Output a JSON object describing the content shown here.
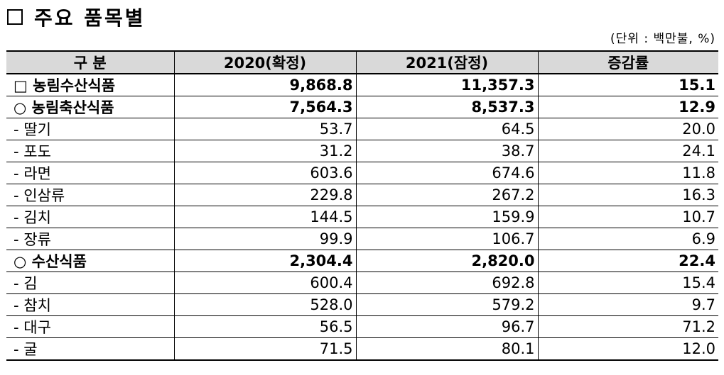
{
  "title": "주요 품목별",
  "unit": "(단위 : 백만불, %)",
  "table": {
    "headers": [
      "구  분",
      "2020(확정)",
      "2021(잠정)",
      "증감률"
    ],
    "rows": [
      {
        "label": "□ 농림수산식품",
        "v2020": "9,868.8",
        "v2021": "11,357.3",
        "rate": "15.1",
        "bold": true
      },
      {
        "label": "○ 농림축산식품",
        "v2020": "7,564.3",
        "v2021": "8,537.3",
        "rate": "12.9",
        "bold": true
      },
      {
        "label": "- 딸기",
        "v2020": "53.7",
        "v2021": "64.5",
        "rate": "20.0",
        "bold": false
      },
      {
        "label": "- 포도",
        "v2020": "31.2",
        "v2021": "38.7",
        "rate": "24.1",
        "bold": false
      },
      {
        "label": "- 라면",
        "v2020": "603.6",
        "v2021": "674.6",
        "rate": "11.8",
        "bold": false
      },
      {
        "label": "- 인삼류",
        "v2020": "229.8",
        "v2021": "267.2",
        "rate": "16.3",
        "bold": false
      },
      {
        "label": "- 김치",
        "v2020": "144.5",
        "v2021": "159.9",
        "rate": "10.7",
        "bold": false
      },
      {
        "label": "- 장류",
        "v2020": "99.9",
        "v2021": "106.7",
        "rate": "6.9",
        "bold": false
      },
      {
        "label": "○ 수산식품",
        "v2020": "2,304.4",
        "v2021": "2,820.0",
        "rate": "22.4",
        "bold": true
      },
      {
        "label": "- 김",
        "v2020": "600.4",
        "v2021": "692.8",
        "rate": "15.4",
        "bold": false
      },
      {
        "label": "- 참치",
        "v2020": "528.0",
        "v2021": "579.2",
        "rate": "9.7",
        "bold": false
      },
      {
        "label": "- 대구",
        "v2020": "56.5",
        "v2021": "96.7",
        "rate": "71.2",
        "bold": false
      },
      {
        "label": "- 굴",
        "v2020": "71.5",
        "v2021": "80.1",
        "rate": "12.0",
        "bold": false
      }
    ]
  }
}
